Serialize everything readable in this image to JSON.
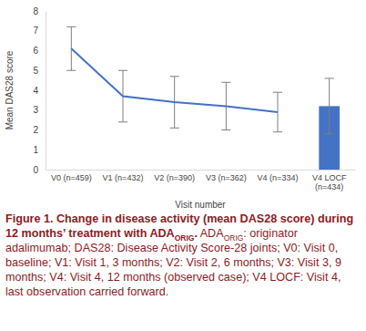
{
  "chart_data": {
    "type": "line",
    "x_label": "Visit number",
    "y_label": "Mean DAS28 score",
    "categories": [
      "V0 (n=459)",
      "V1 (n=432)",
      "V2 (n=390)",
      "V3 (n=362)",
      "V4 (n=334)",
      "V4 LOCF (n=434)"
    ],
    "series": [
      {
        "type": "line",
        "color": "#4472c4",
        "values": [
          6.1,
          3.7,
          3.4,
          3.2,
          2.9,
          null
        ],
        "errors": [
          1.1,
          1.3,
          1.3,
          1.2,
          1.0,
          null
        ]
      },
      {
        "type": "bar",
        "color": "#4472c4",
        "values": [
          null,
          null,
          null,
          null,
          null,
          3.2
        ],
        "errors": [
          null,
          null,
          null,
          null,
          null,
          1.4
        ]
      }
    ],
    "ylim": [
      0,
      8
    ],
    "yticks": [
      0,
      1,
      2,
      3,
      4,
      5,
      6,
      7,
      8
    ],
    "grid": false,
    "caption": {
      "title": [
        "Figure 1. Change in disease activity (mean DAS28 score) during 12 months’ treatment with ADA",
        "ORIG",
        "."
      ],
      "note": [
        "ADA",
        "ORIG",
        ": originator adalimumab; DAS28: Disease Activity Score-28 joints; V0: Visit 0, baseline; V1: Visit 1, 3 months; V2: Visit 2, 6 months; V3: Visit 3, 9 months; V4: Visit 4, 12 months (observed case); V4 LOCF: Visit 4, last observation carried forward."
      ]
    }
  }
}
